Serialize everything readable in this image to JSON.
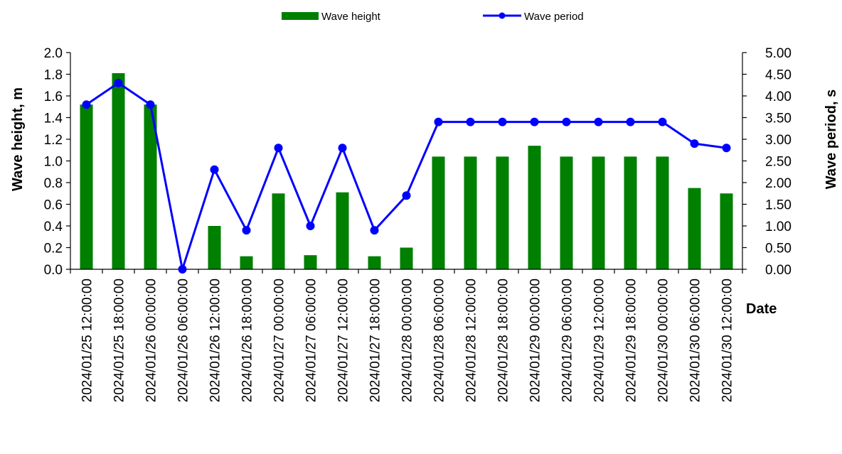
{
  "chart_data": {
    "type": "bar",
    "categories": [
      "2024/01/25 12:00:00",
      "2024/01/25 18:00:00",
      "2024/01/26 00:00:00",
      "2024/01/26 06:00:00",
      "2024/01/26 12:00:00",
      "2024/01/26 18:00:00",
      "2024/01/27 00:00:00",
      "2024/01/27 06:00:00",
      "2024/01/27 12:00:00",
      "2024/01/27 18:00:00",
      "2024/01/28 00:00:00",
      "2024/01/28 06:00:00",
      "2024/01/28 12:00:00",
      "2024/01/28 18:00:00",
      "2024/01/29 00:00:00",
      "2024/01/29 06:00:00",
      "2024/01/29 12:00:00",
      "2024/01/29 18:00:00",
      "2024/01/30 00:00:00",
      "2024/01/30 06:00:00",
      "2024/01/30 12:00:00"
    ],
    "series": [
      {
        "name": "Wave height",
        "type": "bar",
        "axis": "left",
        "color": "#007f00",
        "values": [
          1.52,
          1.81,
          1.52,
          0.0,
          0.4,
          0.12,
          0.7,
          0.13,
          0.71,
          0.12,
          0.2,
          1.04,
          1.04,
          1.04,
          1.14,
          1.04,
          1.04,
          1.04,
          1.04,
          0.75,
          0.7
        ]
      },
      {
        "name": "Wave period",
        "type": "line",
        "axis": "right",
        "color": "#0000ff",
        "values": [
          3.8,
          4.3,
          3.8,
          0.0,
          2.3,
          0.9,
          2.8,
          1.0,
          2.8,
          0.9,
          1.7,
          3.4,
          3.4,
          3.4,
          3.4,
          3.4,
          3.4,
          3.4,
          3.4,
          2.9,
          2.8
        ]
      }
    ],
    "xlabel": "Date",
    "ylabel": "Wave height, m",
    "y2label": "Wave period, s",
    "ylim": [
      0,
      2.0
    ],
    "y2lim": [
      0,
      5.0
    ],
    "yticks": [
      "0.0",
      "0.2",
      "0.4",
      "0.6",
      "0.8",
      "1.0",
      "1.2",
      "1.4",
      "1.6",
      "1.8",
      "2.0"
    ],
    "y2ticks": [
      "0.00",
      "0.50",
      "1.00",
      "1.50",
      "2.00",
      "2.50",
      "3.00",
      "3.50",
      "4.00",
      "4.50",
      "5.00"
    ],
    "legend_position": "top-center",
    "grid": false
  }
}
